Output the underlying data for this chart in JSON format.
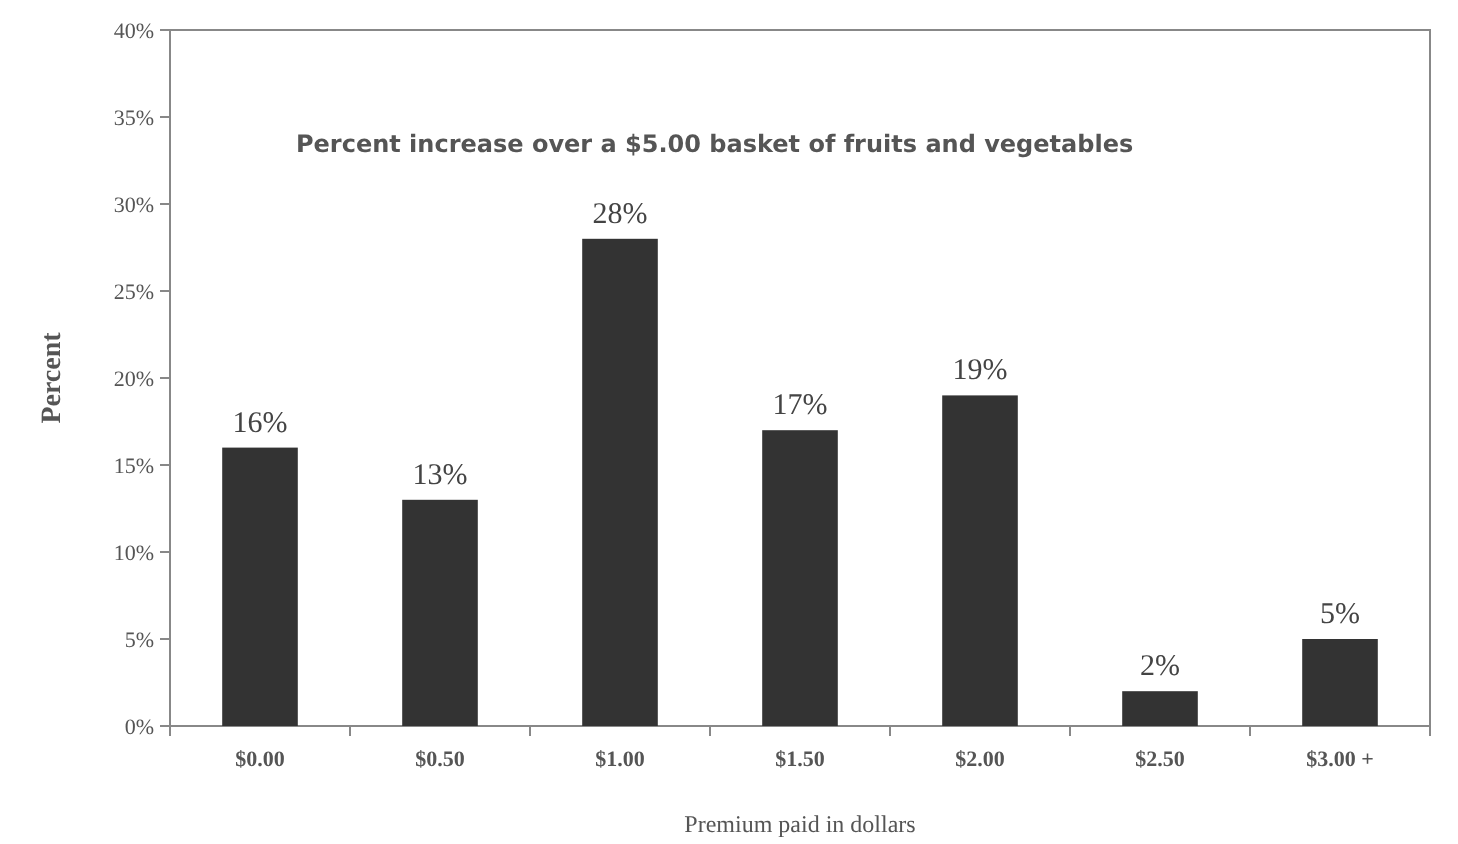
{
  "chart_data": {
    "type": "bar",
    "title": "Percent increase over a $5.00 basket of fruits and vegetables",
    "xlabel": "Premium paid in dollars",
    "ylabel": "Percent",
    "categories": [
      "$0.00",
      "$0.50",
      "$1.00",
      "$1.50",
      "$2.00",
      "$2.50",
      "$3.00 +"
    ],
    "values": [
      16,
      13,
      28,
      17,
      19,
      2,
      5
    ],
    "value_labels": [
      "16%",
      "13%",
      "28%",
      "17%",
      "19%",
      "2%",
      "5%"
    ],
    "color": "#333333",
    "ylim": [
      0,
      40
    ],
    "yticks": [
      {
        "value": 0,
        "label": "0%"
      },
      {
        "value": 5,
        "label": "5%"
      },
      {
        "value": 10,
        "label": "10%"
      },
      {
        "value": 15,
        "label": "15%"
      },
      {
        "value": 20,
        "label": "20%"
      },
      {
        "value": 25,
        "label": "25%"
      },
      {
        "value": 30,
        "label": "30%"
      },
      {
        "value": 35,
        "label": "35%"
      },
      {
        "value": 40,
        "label": "40%"
      }
    ],
    "grid": false
  }
}
